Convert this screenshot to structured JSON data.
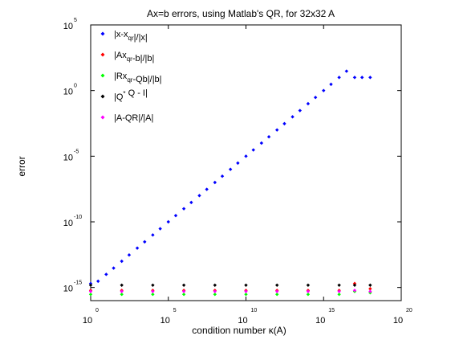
{
  "chart_data": {
    "type": "scatter",
    "title": "Ax=b errors, using Matlab's QR, for 32x32 A",
    "xlabel": "condition number κ(A)",
    "ylabel": "error",
    "x_scale": "log",
    "y_scale": "log",
    "xlim": [
      1,
      1e+20
    ],
    "ylim": [
      1e-16,
      100000.0
    ],
    "x_ticks": [
      {
        "base": "10",
        "exp": "0",
        "value": 1
      },
      {
        "base": "10",
        "exp": "5",
        "value": 100000.0
      },
      {
        "base": "10",
        "exp": "10",
        "value": 10000000000.0
      },
      {
        "base": "10",
        "exp": "15",
        "value": 1000000000000000.0
      },
      {
        "base": "10",
        "exp": "20",
        "value": 1e+20
      }
    ],
    "y_ticks": [
      {
        "base": "10",
        "exp": "-15",
        "value": 1e-15
      },
      {
        "base": "10",
        "exp": "-10",
        "value": 1e-10
      },
      {
        "base": "10",
        "exp": "-5",
        "value": 1e-05
      },
      {
        "base": "10",
        "exp": "0",
        "value": 1
      },
      {
        "base": "10",
        "exp": "5",
        "value": 100000.0
      }
    ],
    "grid": false,
    "legend_position": "top-left",
    "series": [
      {
        "name": "|x-x_qr|/|x|",
        "color": "#0000ff",
        "marker": "diamond",
        "x": [
          1.0,
          3.0,
          10.0,
          30.0,
          100.0,
          300.0,
          1000.0,
          3000.0,
          10000.0,
          30000.0,
          100000.0,
          300000.0,
          1000000.0,
          3000000.0,
          10000000.0,
          30000000.0,
          100000000.0,
          300000000.0,
          1000000000.0,
          3000000000.0,
          10000000000.0,
          30000000000.0,
          100000000000.0,
          300000000000.0,
          1000000000000.0,
          3000000000000.0,
          10000000000000.0,
          30000000000000.0,
          100000000000000.0,
          300000000000000.0,
          1000000000000000.0,
          3000000000000000.0,
          1e+16,
          3e+16,
          1e+17,
          3e+17,
          1e+18
        ],
        "y": [
          2e-15,
          3e-15,
          1e-14,
          3e-14,
          1e-13,
          3e-13,
          1e-12,
          3e-12,
          1e-11,
          3e-11,
          1e-10,
          3e-10,
          1e-09,
          3e-09,
          1e-08,
          3e-08,
          1e-07,
          3e-07,
          1e-06,
          3e-06,
          1e-05,
          3e-05,
          0.0001,
          0.0003,
          0.001,
          0.003,
          0.01,
          0.03,
          0.1,
          0.3,
          1.0,
          3.0,
          10.0,
          30.0,
          10.0,
          10.0,
          10.0
        ]
      },
      {
        "name": "|Ax_qr-b|/|b|",
        "color": "#ff0000",
        "marker": "diamond",
        "x": [
          1.0,
          100.0,
          10000.0,
          1000000.0,
          100000000.0,
          10000000000.0,
          1000000000000.0,
          100000000000000.0,
          1e+16,
          1e+17,
          1e+18
        ],
        "y": [
          6e-16,
          6e-16,
          6e-16,
          6e-16,
          6e-16,
          6e-16,
          6e-16,
          6e-16,
          6e-16,
          2e-15,
          8e-16
        ]
      },
      {
        "name": "|Rx_qr-Qb|/|b|",
        "color": "#00ff00",
        "marker": "diamond",
        "x": [
          1.0,
          100.0,
          10000.0,
          1000000.0,
          100000000.0,
          10000000000.0,
          1000000000000.0,
          100000000000000.0,
          1e+16,
          1e+17,
          1e+18
        ],
        "y": [
          3e-16,
          3e-16,
          3e-16,
          3e-16,
          3e-16,
          3e-16,
          3e-16,
          3e-16,
          3e-16,
          5e-16,
          4e-16
        ]
      },
      {
        "name": "|Q*Q - I|",
        "color": "#000000",
        "marker": "diamond",
        "x": [
          1.0,
          100.0,
          10000.0,
          1000000.0,
          100000000.0,
          10000000000.0,
          1000000000000.0,
          100000000000000.0,
          1e+16,
          1e+17,
          1e+18
        ],
        "y": [
          1.5e-15,
          1.5e-15,
          1.5e-15,
          1.5e-15,
          1.5e-15,
          1.5e-15,
          1.5e-15,
          1.5e-15,
          1.5e-15,
          1.5e-15,
          1.5e-15
        ]
      },
      {
        "name": "|A-QR|/|A|",
        "color": "#ff00ff",
        "marker": "diamond",
        "x": [
          1.0,
          100.0,
          10000.0,
          1000000.0,
          100000000.0,
          10000000000.0,
          1000000000000.0,
          100000000000000.0,
          1e+16,
          1e+17,
          1e+18
        ],
        "y": [
          5e-16,
          5e-16,
          5e-16,
          5e-16,
          5e-16,
          5e-16,
          5e-16,
          5e-16,
          5e-16,
          6e-16,
          5e-16
        ]
      }
    ],
    "legend": [
      {
        "color": "#0000ff",
        "parts": [
          {
            "t": "|x-x"
          },
          {
            "t": "qr",
            "sub": true
          },
          {
            "t": "|/|x|"
          }
        ]
      },
      {
        "color": "#ff0000",
        "parts": [
          {
            "t": "|Ax"
          },
          {
            "t": "qr",
            "sub": true
          },
          {
            "t": "-b|/|b|"
          }
        ]
      },
      {
        "color": "#00ff00",
        "parts": [
          {
            "t": "|Rx"
          },
          {
            "t": "qr",
            "sub": true
          },
          {
            "t": "-Qb|/|b|"
          }
        ]
      },
      {
        "color": "#000000",
        "parts": [
          {
            "t": "|Q"
          },
          {
            "t": "*",
            "sup": true
          },
          {
            "t": " Q - I|"
          }
        ]
      },
      {
        "color": "#ff00ff",
        "parts": [
          {
            "t": "|A-QR|/|A|"
          }
        ]
      }
    ]
  }
}
